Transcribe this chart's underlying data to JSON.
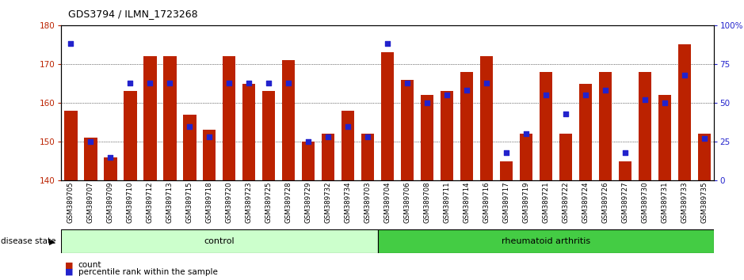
{
  "title": "GDS3794 / ILMN_1723268",
  "samples": [
    "GSM389705",
    "GSM389707",
    "GSM389709",
    "GSM389710",
    "GSM389712",
    "GSM389713",
    "GSM389715",
    "GSM389718",
    "GSM389720",
    "GSM389723",
    "GSM389725",
    "GSM389728",
    "GSM389729",
    "GSM389732",
    "GSM389734",
    "GSM389703",
    "GSM389704",
    "GSM389706",
    "GSM389708",
    "GSM389711",
    "GSM389714",
    "GSM389716",
    "GSM389717",
    "GSM389719",
    "GSM389721",
    "GSM389722",
    "GSM389724",
    "GSM389726",
    "GSM389727",
    "GSM389730",
    "GSM389731",
    "GSM389733",
    "GSM389735"
  ],
  "counts": [
    158,
    151,
    146,
    163,
    172,
    172,
    157,
    153,
    172,
    165,
    163,
    171,
    150,
    152,
    158,
    152,
    173,
    166,
    162,
    163,
    168,
    172,
    145,
    152,
    168,
    152,
    165,
    168,
    145,
    168,
    162,
    175,
    152
  ],
  "percentile_ranks": [
    88,
    25,
    15,
    63,
    63,
    63,
    35,
    28,
    63,
    63,
    63,
    63,
    25,
    28,
    35,
    28,
    88,
    63,
    50,
    55,
    58,
    63,
    18,
    30,
    55,
    43,
    55,
    58,
    18,
    52,
    50,
    68,
    27
  ],
  "n_control": 16,
  "ylim_left": [
    140,
    180
  ],
  "ylim_right": [
    0,
    100
  ],
  "yticks_left": [
    140,
    150,
    160,
    170,
    180
  ],
  "yticks_right": [
    0,
    25,
    50,
    75,
    100
  ],
  "bar_color": "#bb2200",
  "dot_color": "#2222cc",
  "control_color": "#ccffcc",
  "ra_color": "#44cc44",
  "label_control": "control",
  "label_ra": "rheumatoid arthritis",
  "disease_state_label": "disease state",
  "legend_count": "count",
  "legend_percentile": "percentile rank within the sample",
  "bg_color": "#ffffff",
  "title_fontsize": 9,
  "tick_fontsize": 7.5,
  "xtick_fontsize": 6.2
}
